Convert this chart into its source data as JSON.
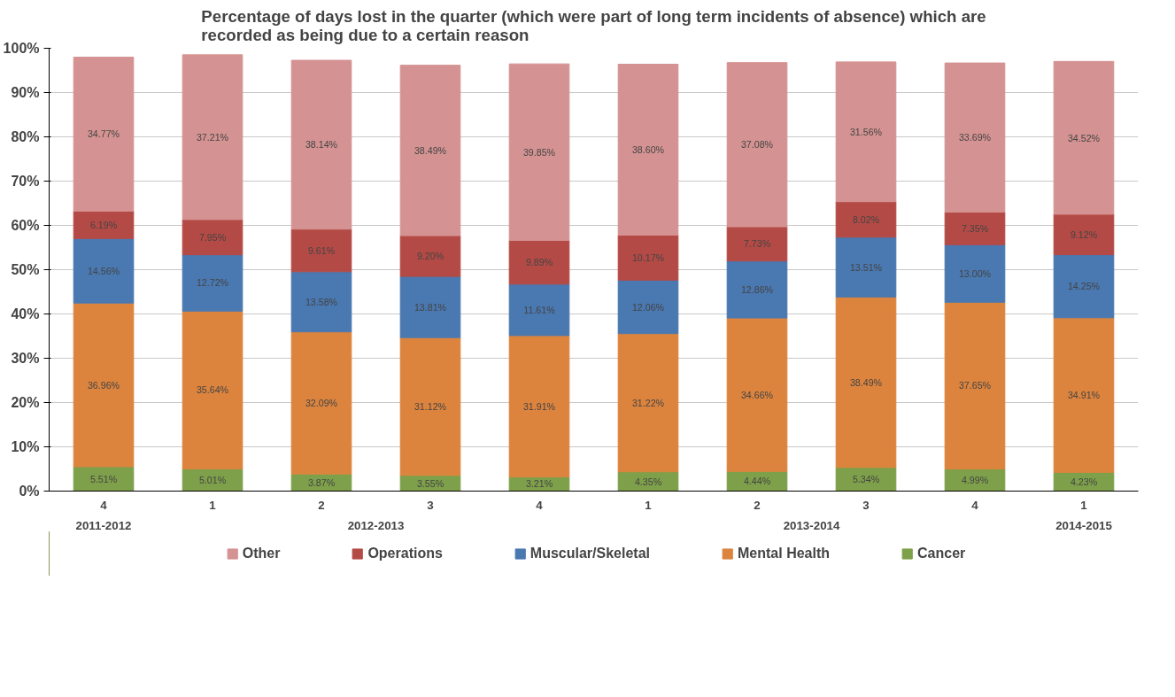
{
  "chart_data": {
    "type": "bar",
    "stacked": true,
    "title": "Percentage of days lost in the quarter (which were part of long term incidents of absence) which are\nrecorded as being due to a certain reason",
    "categories": [
      "4",
      "1",
      "2",
      "3",
      "4",
      "1",
      "2",
      "3",
      "4",
      "1"
    ],
    "annotations": [
      "2011-2012",
      "2012-2013",
      "2013-2014",
      "2014-2015"
    ],
    "series": [
      {
        "name": "Cancer",
        "color": "#7ea04a",
        "values": [
          5.51,
          5.01,
          3.87,
          3.55,
          3.21,
          4.35,
          4.44,
          5.34,
          4.99,
          4.23
        ],
        "value_labels": [
          "5.51%",
          "5.01%",
          "3.87%",
          "3.55%",
          "3.21%",
          "4.35%",
          "4.44%",
          "5.34%",
          "4.99%",
          "4.23%"
        ]
      },
      {
        "name": "Mental Health",
        "color": "#dc843e",
        "values": [
          36.96,
          35.64,
          32.09,
          31.12,
          31.91,
          31.22,
          34.66,
          38.49,
          37.65,
          34.91
        ],
        "value_labels": [
          "36.96%",
          "35.64%",
          "32.09%",
          "31.12%",
          "31.91%",
          "31.22%",
          "34.66%",
          "38.49%",
          "37.65%",
          "34.91%"
        ]
      },
      {
        "name": "Muscular/Skeletal",
        "color": "#4a78b0",
        "values": [
          14.56,
          12.72,
          13.58,
          13.81,
          11.61,
          12.06,
          12.86,
          13.51,
          13.0,
          14.25
        ],
        "value_labels": [
          "14.56%",
          "12.72%",
          "13.58%",
          "13.81%",
          "11.61%",
          "12.06%",
          "12.86%",
          "13.51%",
          "13.00%",
          "14.25%"
        ]
      },
      {
        "name": "Operations",
        "color": "#b44a46",
        "values": [
          6.19,
          7.95,
          9.61,
          9.2,
          9.89,
          10.17,
          7.73,
          8.02,
          7.35,
          9.12
        ],
        "value_labels": [
          "6.19%",
          "7.95%",
          "9.61%",
          "9.20%",
          "9.89%",
          "10.17%",
          "7.73%",
          "8.02%",
          "7.35%",
          "9.12%"
        ]
      },
      {
        "name": "Other",
        "color": "#d49392",
        "values": [
          34.77,
          37.21,
          38.14,
          38.49,
          39.85,
          38.6,
          37.08,
          31.56,
          33.69,
          34.52
        ],
        "value_labels": [
          "34.77%",
          "37.21%",
          "38.14%",
          "38.49%",
          "39.85%",
          "38.60%",
          "37.08%",
          "31.56%",
          "33.69%",
          "34.52%"
        ]
      }
    ],
    "ylim": [
      0,
      100
    ],
    "yticks": [
      {
        "value": 0,
        "label": "0%"
      },
      {
        "value": 10,
        "label": "10%"
      },
      {
        "value": 20,
        "label": "20%"
      },
      {
        "value": 30,
        "label": "30%"
      },
      {
        "value": 40,
        "label": "40%"
      },
      {
        "value": 50,
        "label": "50%"
      },
      {
        "value": 60,
        "label": "60%"
      },
      {
        "value": 70,
        "label": "70%"
      },
      {
        "value": 80,
        "label": "80%"
      },
      {
        "value": 90,
        "label": "90%"
      },
      {
        "value": 100,
        "label": "100%"
      }
    ],
    "grid": "y",
    "legend": "bottom"
  }
}
